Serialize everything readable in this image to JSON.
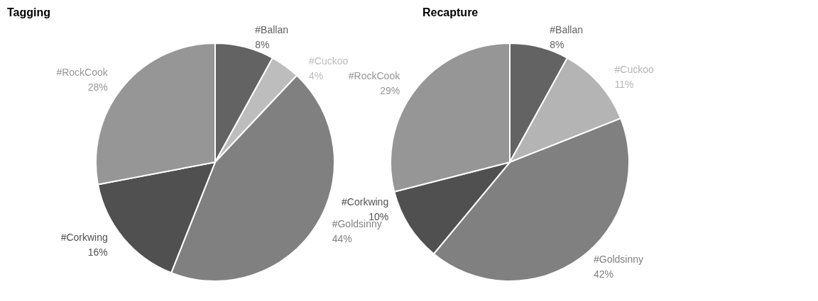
{
  "chart_data": [
    {
      "type": "pie",
      "title": "Tagging",
      "categories": [
        "#Ballan",
        "#Cuckoo",
        "#Goldsinny",
        "#Corkwing",
        "#RockCook"
      ],
      "values": [
        8,
        4,
        44,
        16,
        28
      ],
      "value_labels": [
        "8%",
        "4%",
        "44%",
        "16%",
        "28%"
      ],
      "colors": [
        "#636363",
        "#bdbdbd",
        "#808080",
        "#505050",
        "#969696"
      ]
    },
    {
      "type": "pie",
      "title": "Recapture",
      "categories": [
        "#Ballan",
        "#Cuckoo",
        "#Goldsinny",
        "#Corkwing",
        "#RockCook"
      ],
      "values": [
        8,
        11,
        42,
        10,
        29
      ],
      "value_labels": [
        "8%",
        "11%",
        "42%",
        "10%",
        "29%"
      ],
      "colors": [
        "#636363",
        "#b4b4b4",
        "#808080",
        "#505050",
        "#969696"
      ]
    }
  ]
}
